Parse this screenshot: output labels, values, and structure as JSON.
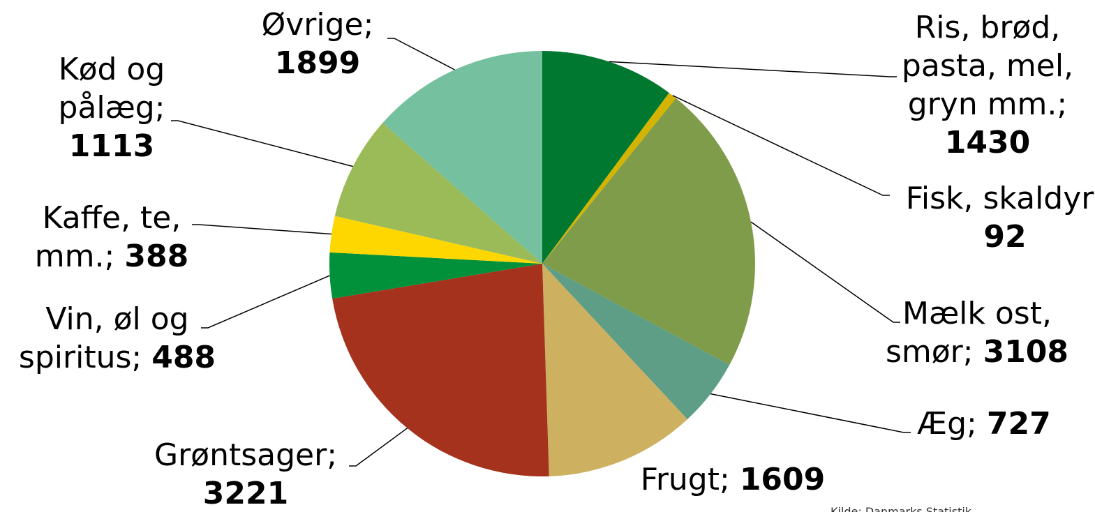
{
  "chart_data": {
    "type": "pie",
    "categories": [
      "Ris, brød, pasta, mel, gryn mm.;",
      "Fisk, skaldyr;",
      "Mælk ost, smør;",
      "Æg;",
      "Frugt;",
      "Grøntsager;",
      "Vin, øl og spiritus;",
      "Kaffe, te, mm.;",
      "Kød og pålæg;",
      "Øvrige;"
    ],
    "values": [
      1430,
      92,
      3108,
      727,
      1609,
      3221,
      488,
      388,
      1113,
      1899
    ],
    "colors": [
      "#00782f",
      "#d4b400",
      "#7f9c4a",
      "#5e9e86",
      "#cdb060",
      "#a5321c",
      "#00913a",
      "#ffd700",
      "#9bbb59",
      "#75c09f"
    ],
    "source": "Kilde: Danmarks Statistik"
  }
}
